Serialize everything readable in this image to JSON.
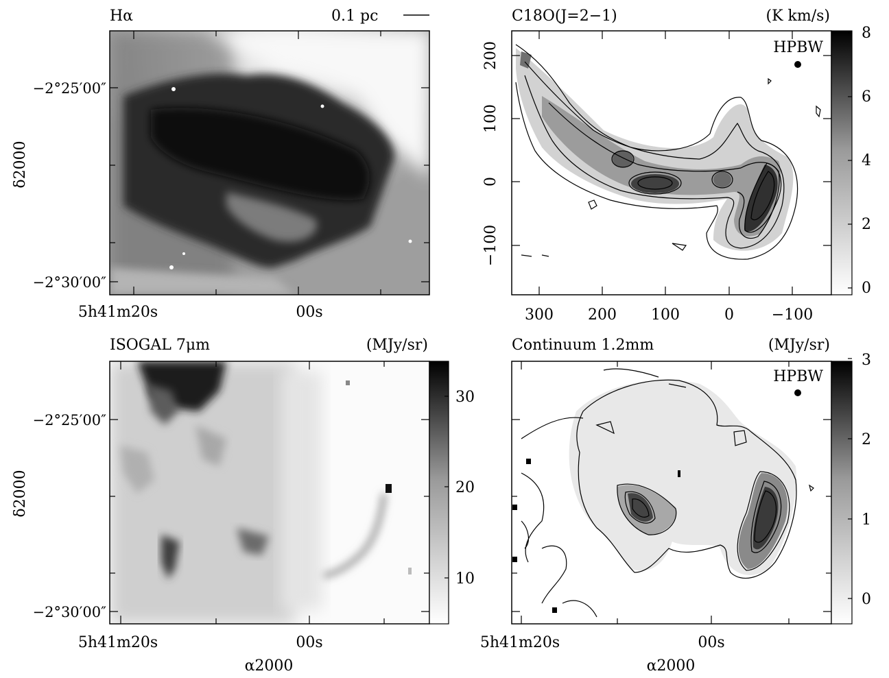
{
  "figure": {
    "colors": {
      "ink": "#000000",
      "paper": "#ffffff"
    },
    "panels": [
      {
        "id": "halpha",
        "title": "Hα",
        "scalebar_label": "0.1 pc",
        "ylabel": "δ2000",
        "y_ticks": [
          "−2°25′00″",
          "−2°30′00″"
        ],
        "x_ticks": [
          "5h41m20s",
          "00s"
        ]
      },
      {
        "id": "c18o",
        "title": "C18O(J=2−1)",
        "unit": "(K km/s)",
        "beam_label": "HPBW",
        "x_ticks": [
          "300",
          "200",
          "100",
          "0",
          "−100"
        ],
        "y_ticks": [
          "200",
          "100",
          "0",
          "−100"
        ],
        "colorbar_ticks": [
          "8",
          "6",
          "4",
          "2",
          "0"
        ]
      },
      {
        "id": "isogal",
        "title": "ISOGAL 7μm",
        "unit": "(MJy/sr)",
        "ylabel": "δ2000",
        "xlabel": "α2000",
        "y_ticks": [
          "−2°25′00″",
          "−2°30′00″"
        ],
        "x_ticks": [
          "5h41m20s",
          "00s"
        ],
        "colorbar_ticks": [
          "30",
          "20",
          "10"
        ]
      },
      {
        "id": "continuum",
        "title": "Continuum 1.2mm",
        "unit": "(MJy/sr)",
        "beam_label": "HPBW",
        "xlabel": "α2000",
        "x_ticks": [
          "5h41m20s",
          "00s"
        ],
        "colorbar_ticks": [
          "3",
          "2",
          "1",
          "0"
        ]
      }
    ]
  }
}
